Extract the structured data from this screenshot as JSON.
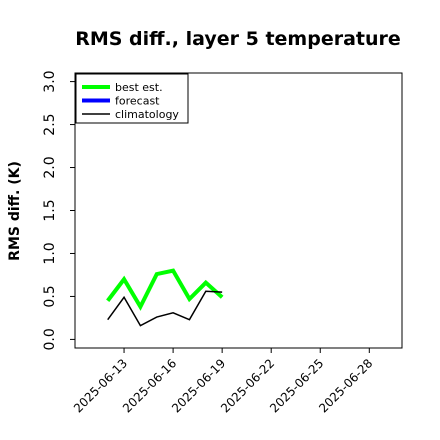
{
  "chart_data": {
    "type": "line",
    "title": "RMS diff., layer 5 temperature",
    "y_label": "RMS diff. (K)",
    "x": [
      "2025-06-12",
      "2025-06-13",
      "2025-06-14",
      "2025-06-15",
      "2025-06-16",
      "2025-06-17",
      "2025-06-18",
      "2025-06-19"
    ],
    "series": [
      {
        "name": "best est.",
        "color": "#00ff00",
        "width": 4,
        "values": [
          0.45,
          0.7,
          0.38,
          0.76,
          0.8,
          0.47,
          0.66,
          0.49
        ]
      },
      {
        "name": "forecast",
        "color": "#0000ff",
        "width": 4,
        "values": [
          null,
          null,
          null,
          null,
          null,
          null,
          null,
          null
        ]
      },
      {
        "name": "climatology",
        "color": "#000000",
        "width": 1.5,
        "values": [
          0.23,
          0.49,
          0.16,
          0.26,
          0.31,
          0.23,
          0.56,
          0.55
        ]
      }
    ],
    "xlim": [
      "2025-06-10",
      "2025-06-30"
    ],
    "xticks": [
      "2025-06-13",
      "2025-06-16",
      "2025-06-19",
      "2025-06-22",
      "2025-06-25",
      "2025-06-28"
    ],
    "highlight_xtick": "2025-06-19",
    "highlight_color": "#228b22",
    "ylim": [
      -0.1,
      3.1
    ],
    "yticks": [
      {
        "value": 0,
        "label": "0.0"
      },
      0.5,
      {
        "value": 1,
        "label": "1.0"
      },
      1.5,
      {
        "value": 2,
        "label": "2.0"
      },
      2.5,
      {
        "value": 3,
        "label": "3.0"
      }
    ],
    "legend": "upper left",
    "grid": false
  }
}
